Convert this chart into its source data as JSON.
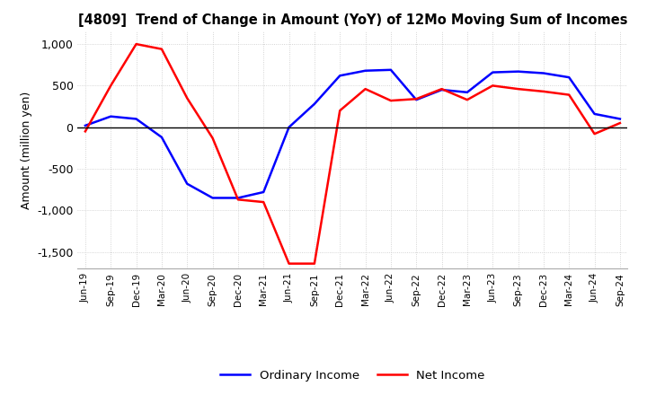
{
  "title": "[4809]  Trend of Change in Amount (YoY) of 12Mo Moving Sum of Incomes",
  "ylabel": "Amount (million yen)",
  "ylim": [
    -1700,
    1150
  ],
  "yticks": [
    -1500,
    -1000,
    -500,
    0,
    500,
    1000
  ],
  "background_color": "#ffffff",
  "grid_color": "#c8c8c8",
  "ordinary_income_color": "#0000ff",
  "net_income_color": "#ff0000",
  "x_labels": [
    "Jun-19",
    "Sep-19",
    "Dec-19",
    "Mar-20",
    "Jun-20",
    "Sep-20",
    "Dec-20",
    "Mar-21",
    "Jun-21",
    "Sep-21",
    "Dec-21",
    "Mar-22",
    "Jun-22",
    "Sep-22",
    "Dec-22",
    "Mar-23",
    "Jun-23",
    "Sep-23",
    "Dec-23",
    "Mar-24",
    "Jun-24",
    "Sep-24"
  ],
  "ordinary_income": [
    20,
    130,
    100,
    -120,
    -680,
    -850,
    -850,
    -780,
    0,
    280,
    620,
    680,
    690,
    330,
    450,
    420,
    660,
    670,
    650,
    600,
    160,
    100
  ],
  "net_income": [
    -50,
    500,
    1000,
    940,
    350,
    -130,
    -870,
    -900,
    -1640,
    -1640,
    200,
    460,
    320,
    340,
    460,
    330,
    500,
    460,
    430,
    390,
    -80,
    50
  ]
}
